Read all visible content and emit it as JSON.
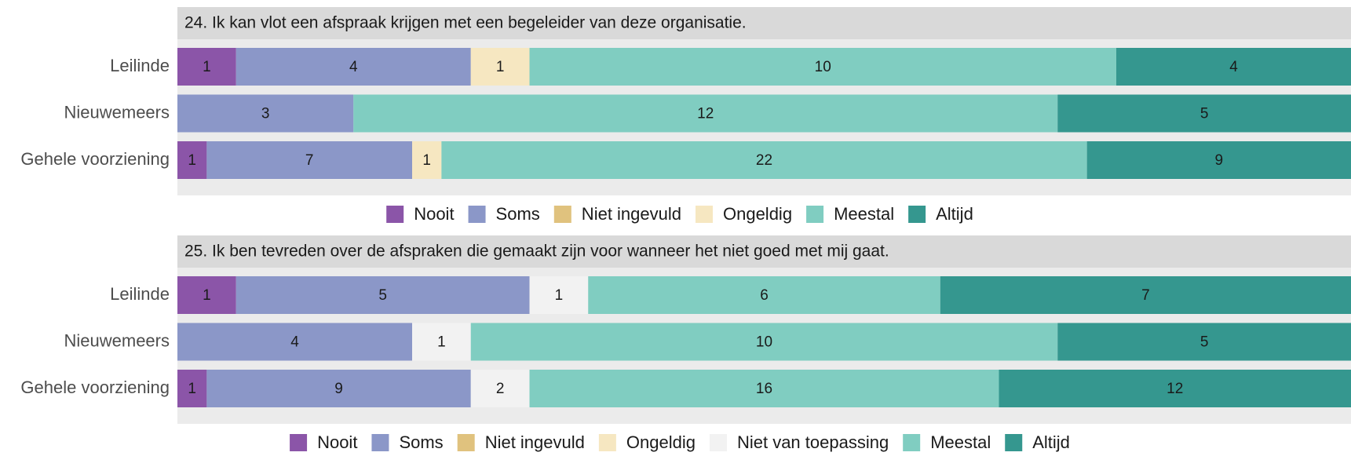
{
  "chart_data": [
    {
      "type": "stacked_bar_h",
      "title": "24. Ik kan vlot een afspraak krijgen met een begeleider van deze organisatie.",
      "categories": [
        "Leilinde",
        "Nieuwemeers",
        "Gehele voorziening"
      ],
      "series": [
        {
          "name": "Nooit",
          "color": "#8b55a8",
          "values": [
            1,
            null,
            1
          ]
        },
        {
          "name": "Soms",
          "color": "#8b97c8",
          "values": [
            4,
            3,
            7
          ]
        },
        {
          "name": "Niet ingevuld",
          "color": "#e0c27e",
          "values": [
            null,
            null,
            null
          ]
        },
        {
          "name": "Ongeldig",
          "color": "#f6e7c1",
          "values": [
            1,
            null,
            1
          ]
        },
        {
          "name": "Meestal",
          "color": "#80cdc1",
          "values": [
            10,
            12,
            22
          ]
        },
        {
          "name": "Altijd",
          "color": "#35978f",
          "values": [
            4,
            5,
            9
          ]
        }
      ]
    },
    {
      "type": "stacked_bar_h",
      "title": "25. Ik ben tevreden over de afspraken die gemaakt zijn voor wanneer het niet goed met mij gaat.",
      "categories": [
        "Leilinde",
        "Nieuwemeers",
        "Gehele voorziening"
      ],
      "series": [
        {
          "name": "Nooit",
          "color": "#8b55a8",
          "values": [
            1,
            null,
            1
          ]
        },
        {
          "name": "Soms",
          "color": "#8b97c8",
          "values": [
            5,
            4,
            9
          ]
        },
        {
          "name": "Niet ingevuld",
          "color": "#e0c27e",
          "values": [
            null,
            null,
            null
          ]
        },
        {
          "name": "Ongeldig",
          "color": "#f6e7c1",
          "values": [
            null,
            null,
            null
          ]
        },
        {
          "name": "Niet van toepassing",
          "color": "#f2f2f2",
          "values": [
            1,
            1,
            2
          ]
        },
        {
          "name": "Meestal",
          "color": "#80cdc1",
          "values": [
            6,
            10,
            16
          ]
        },
        {
          "name": "Altijd",
          "color": "#35978f",
          "values": [
            7,
            5,
            12
          ]
        }
      ]
    }
  ]
}
